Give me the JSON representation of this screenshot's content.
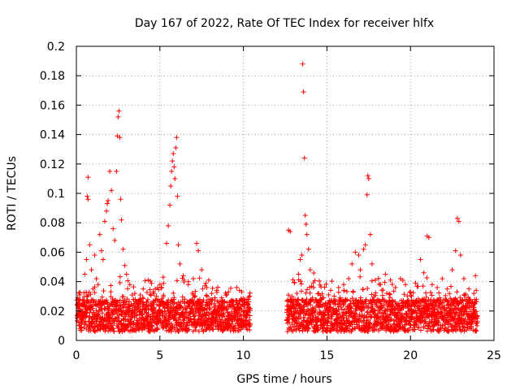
{
  "chart_data": {
    "type": "scatter",
    "title": "Day 167 of 2022, Rate Of TEC Index for receiver hlfx",
    "xlabel": "GPS time / hours",
    "ylabel": "ROTI / TECUs",
    "xlim": [
      0,
      25
    ],
    "ylim": [
      0,
      0.2
    ],
    "xticks": [
      0,
      5,
      10,
      15,
      20,
      25
    ],
    "xtick_labels": [
      "0",
      "5",
      "10",
      "15",
      "20",
      "25"
    ],
    "yticks": [
      0,
      0.02,
      0.04,
      0.06,
      0.08,
      0.1,
      0.12,
      0.14,
      0.16,
      0.18,
      0.2
    ],
    "ytick_labels": [
      "0",
      "0.02",
      "0.04",
      "0.06",
      "0.08",
      "0.1",
      "0.12",
      "0.14",
      "0.16",
      "0.18",
      "0.2"
    ],
    "grid": true,
    "marker": "+",
    "color": "#ff0000",
    "data_gaps_hours": [
      [
        10.4,
        12.6
      ]
    ],
    "points": [
      [
        0.1,
        0.022
      ],
      [
        0.2,
        0.031
      ],
      [
        0.3,
        0.018
      ],
      [
        0.4,
        0.027
      ],
      [
        0.5,
        0.045
      ],
      [
        0.6,
        0.055
      ],
      [
        0.65,
        0.098
      ],
      [
        0.7,
        0.096
      ],
      [
        0.7,
        0.111
      ],
      [
        0.8,
        0.065
      ],
      [
        0.9,
        0.048
      ],
      [
        1.0,
        0.035
      ],
      [
        1.1,
        0.058
      ],
      [
        1.2,
        0.042
      ],
      [
        1.3,
        0.038
      ],
      [
        1.4,
        0.072
      ],
      [
        1.5,
        0.061
      ],
      [
        1.6,
        0.055
      ],
      [
        1.7,
        0.081
      ],
      [
        1.8,
        0.088
      ],
      [
        1.85,
        0.093
      ],
      [
        1.9,
        0.095
      ],
      [
        2.0,
        0.115
      ],
      [
        2.1,
        0.102
      ],
      [
        2.2,
        0.076
      ],
      [
        2.3,
        0.068
      ],
      [
        2.4,
        0.115
      ],
      [
        2.45,
        0.139
      ],
      [
        2.5,
        0.152
      ],
      [
        2.55,
        0.156
      ],
      [
        2.6,
        0.138
      ],
      [
        2.65,
        0.096
      ],
      [
        2.7,
        0.082
      ],
      [
        2.8,
        0.062
      ],
      [
        2.9,
        0.051
      ],
      [
        3.0,
        0.045
      ],
      [
        3.2,
        0.038
      ],
      [
        3.5,
        0.032
      ],
      [
        3.8,
        0.028
      ],
      [
        4.0,
        0.035
      ],
      [
        4.3,
        0.041
      ],
      [
        4.6,
        0.033
      ],
      [
        5.0,
        0.038
      ],
      [
        5.2,
        0.043
      ],
      [
        5.4,
        0.066
      ],
      [
        5.5,
        0.078
      ],
      [
        5.6,
        0.092
      ],
      [
        5.65,
        0.105
      ],
      [
        5.7,
        0.115
      ],
      [
        5.75,
        0.122
      ],
      [
        5.8,
        0.127
      ],
      [
        5.85,
        0.118
      ],
      [
        5.9,
        0.11
      ],
      [
        5.95,
        0.131
      ],
      [
        6.0,
        0.138
      ],
      [
        6.05,
        0.098
      ],
      [
        6.1,
        0.065
      ],
      [
        6.2,
        0.052
      ],
      [
        6.4,
        0.044
      ],
      [
        6.7,
        0.038
      ],
      [
        7.0,
        0.042
      ],
      [
        7.2,
        0.066
      ],
      [
        7.3,
        0.061
      ],
      [
        7.5,
        0.048
      ],
      [
        7.8,
        0.036
      ],
      [
        8.1,
        0.032
      ],
      [
        8.4,
        0.034
      ],
      [
        8.7,
        0.029
      ],
      [
        9.0,
        0.031
      ],
      [
        9.3,
        0.027
      ],
      [
        9.6,
        0.036
      ],
      [
        9.9,
        0.033
      ],
      [
        10.2,
        0.02
      ],
      [
        12.7,
        0.075
      ],
      [
        12.8,
        0.074
      ],
      [
        12.9,
        0.03
      ],
      [
        13.0,
        0.028
      ],
      [
        13.2,
        0.032
      ],
      [
        13.3,
        0.045
      ],
      [
        13.4,
        0.055
      ],
      [
        13.5,
        0.058
      ],
      [
        13.55,
        0.188
      ],
      [
        13.6,
        0.169
      ],
      [
        13.65,
        0.124
      ],
      [
        13.7,
        0.085
      ],
      [
        13.75,
        0.079
      ],
      [
        13.8,
        0.072
      ],
      [
        13.9,
        0.062
      ],
      [
        14.0,
        0.048
      ],
      [
        14.2,
        0.036
      ],
      [
        14.5,
        0.032
      ],
      [
        14.8,
        0.029
      ],
      [
        15.1,
        0.031
      ],
      [
        15.4,
        0.027
      ],
      [
        15.7,
        0.036
      ],
      [
        16.0,
        0.038
      ],
      [
        16.3,
        0.042
      ],
      [
        16.5,
        0.052
      ],
      [
        16.7,
        0.06
      ],
      [
        16.9,
        0.058
      ],
      [
        17.0,
        0.048
      ],
      [
        17.2,
        0.062
      ],
      [
        17.3,
        0.065
      ],
      [
        17.4,
        0.099
      ],
      [
        17.45,
        0.112
      ],
      [
        17.5,
        0.11
      ],
      [
        17.6,
        0.072
      ],
      [
        17.7,
        0.052
      ],
      [
        17.9,
        0.041
      ],
      [
        18.2,
        0.038
      ],
      [
        18.5,
        0.045
      ],
      [
        18.8,
        0.041
      ],
      [
        19.1,
        0.036
      ],
      [
        19.4,
        0.042
      ],
      [
        19.7,
        0.038
      ],
      [
        20.0,
        0.033
      ],
      [
        20.3,
        0.039
      ],
      [
        20.6,
        0.055
      ],
      [
        20.8,
        0.046
      ],
      [
        21.0,
        0.071
      ],
      [
        21.1,
        0.07
      ],
      [
        21.3,
        0.038
      ],
      [
        21.6,
        0.036
      ],
      [
        21.9,
        0.042
      ],
      [
        22.2,
        0.035
      ],
      [
        22.5,
        0.048
      ],
      [
        22.7,
        0.061
      ],
      [
        22.8,
        0.083
      ],
      [
        22.9,
        0.081
      ],
      [
        23.0,
        0.058
      ],
      [
        23.2,
        0.042
      ],
      [
        23.5,
        0.035
      ],
      [
        23.8,
        0.032
      ],
      [
        23.95,
        0.028
      ]
    ]
  }
}
